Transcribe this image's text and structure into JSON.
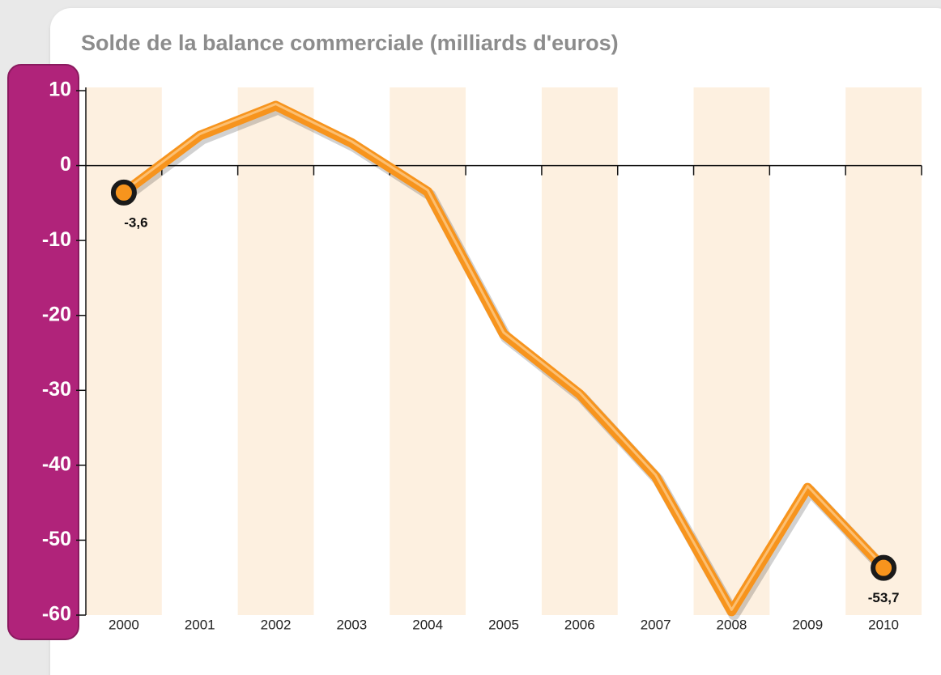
{
  "chart_data": {
    "type": "line",
    "title": "Solde de la balance commerciale (milliards d'euros)",
    "categories": [
      "2000",
      "2001",
      "2002",
      "2003",
      "2004",
      "2005",
      "2006",
      "2007",
      "2008",
      "2009",
      "2010"
    ],
    "values": [
      -3.6,
      4,
      8,
      3,
      -3.5,
      -22.5,
      -30.5,
      -41.5,
      -59.5,
      -43,
      -53.7
    ],
    "value_labels": [
      "-3,6",
      null,
      null,
      null,
      null,
      null,
      null,
      null,
      null,
      null,
      "-53,7"
    ],
    "color": "#f7941d",
    "ylim": [
      -60,
      10
    ],
    "yticks": [
      10,
      0,
      -10,
      -20,
      -30,
      -40,
      -50,
      -60
    ]
  }
}
